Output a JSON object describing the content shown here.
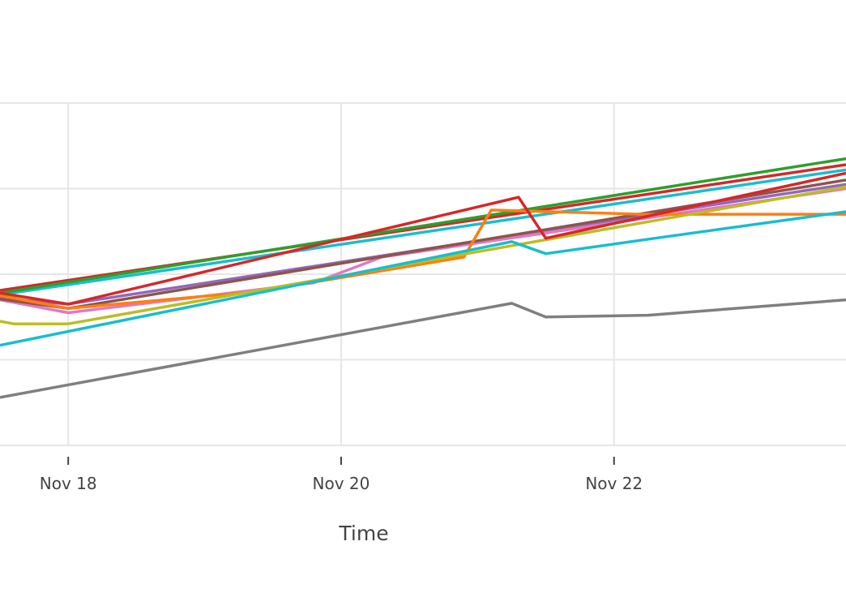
{
  "chart_data": {
    "type": "line",
    "title": "",
    "xlabel": "Time",
    "ylabel": "",
    "x_tick_labels": [
      "Nov 18",
      "Nov 20",
      "Nov 22"
    ],
    "x_tick_dates": [
      "2023-11-18",
      "2023-11-20",
      "2023-11-22"
    ],
    "xlim": [
      "2023-11-17.5",
      "2023-11-23.7"
    ],
    "y_visible_range": [
      0,
      4
    ],
    "ylim": [
      0,
      4.2
    ],
    "y_gridlines": [
      0,
      1,
      2,
      3,
      4
    ],
    "y_tick_labels_visible": false,
    "grid": true,
    "legend": "none",
    "series": [
      {
        "color": "#d62728",
        "x": [
          "2023-11-17.5",
          "2023-11-23.7"
        ],
        "y": [
          1.81,
          3.28
        ]
      },
      {
        "color": "#17becf",
        "x": [
          "2023-11-17.5",
          "2023-11-23.7"
        ],
        "y": [
          1.76,
          3.22
        ]
      },
      {
        "color": "#2ca02c",
        "x": [
          "2023-11-17.5",
          "2023-11-23.7"
        ],
        "y": [
          1.78,
          3.35
        ]
      },
      {
        "color": "#9467bd",
        "x": [
          "2023-11-17.5",
          "2023-11-18",
          "2023-11-23.7"
        ],
        "y": [
          1.72,
          1.65,
          3.05
        ]
      },
      {
        "color": "#e377c2",
        "x": [
          "2023-11-17.5",
          "2023-11-18",
          "2023-11-19.8",
          "2023-11-20.3",
          "2023-11-23.7"
        ],
        "y": [
          1.7,
          1.55,
          1.9,
          2.2,
          3.0
        ]
      },
      {
        "color": "#8c564b",
        "x": [
          "2023-11-17.5",
          "2023-11-18",
          "2023-11-23.7"
        ],
        "y": [
          1.71,
          1.6,
          3.1
        ]
      },
      {
        "color": "#ff7f0e",
        "x": [
          "2023-11-17.5",
          "2023-11-18",
          "2023-11-19.4",
          "2023-11-20.9",
          "2023-11-21.1",
          "2023-11-22.2",
          "2023-11-23.7"
        ],
        "y": [
          1.75,
          1.6,
          1.8,
          2.2,
          2.75,
          2.7,
          2.7
        ]
      },
      {
        "color": "#bcbd22",
        "x": [
          "2023-11-17.5",
          "2023-11-17.6",
          "2023-11-18",
          "2023-11-23.7"
        ],
        "y": [
          1.45,
          1.42,
          1.42,
          3.02
        ]
      },
      {
        "color": "#d62728",
        "x": [
          "2023-11-17.5",
          "2023-11-18",
          "2023-11-21.3",
          "2023-11-21.5",
          "2023-11-23.7"
        ],
        "y": [
          1.78,
          1.65,
          2.9,
          2.42,
          3.18
        ]
      },
      {
        "color": "#17becf",
        "x": [
          "2023-11-17.5",
          "2023-11-21.25",
          "2023-11-21.5",
          "2023-11-22.3",
          "2023-11-23.7"
        ],
        "y": [
          1.17,
          2.38,
          2.24,
          2.42,
          2.73
        ]
      },
      {
        "color": "#7f7f7f",
        "x": [
          "2023-11-17.5",
          "2023-11-21.25",
          "2023-11-21.5",
          "2023-11-22.25",
          "2023-11-23.7"
        ],
        "y": [
          0.56,
          1.66,
          1.5,
          1.52,
          1.7
        ]
      }
    ]
  }
}
